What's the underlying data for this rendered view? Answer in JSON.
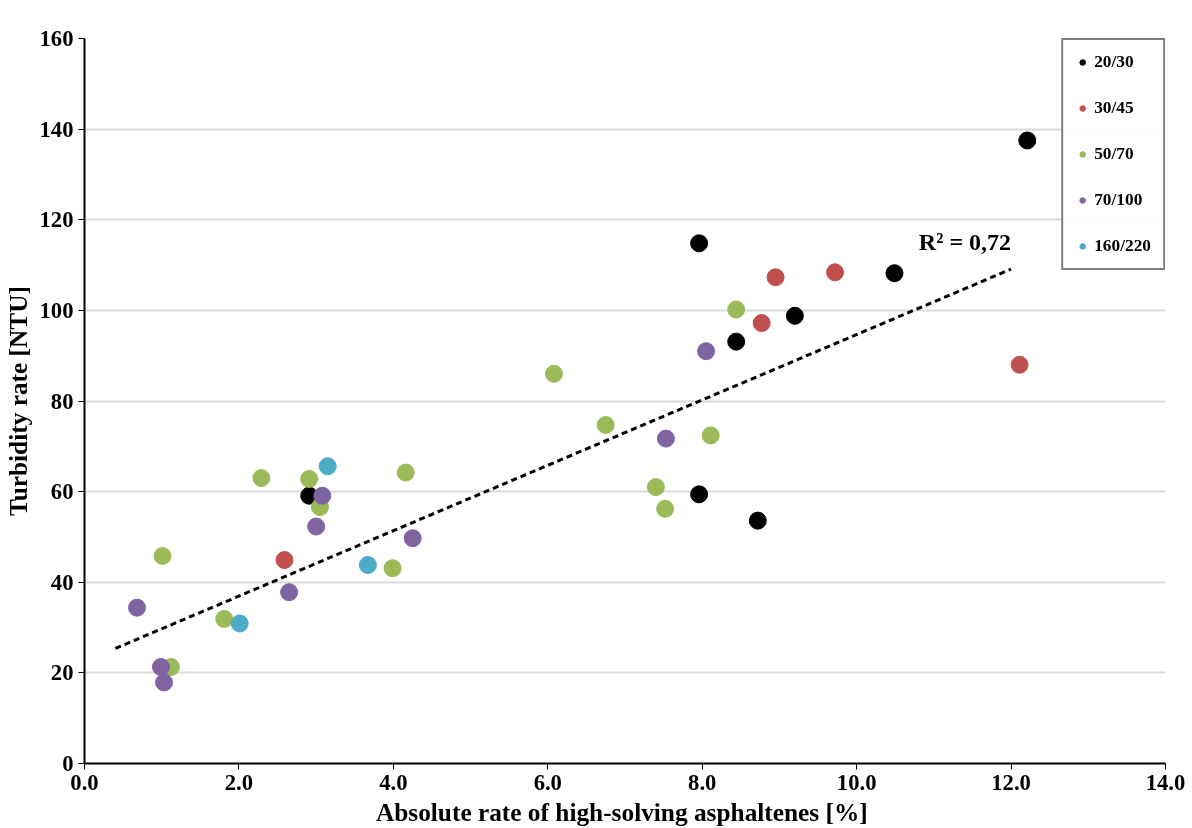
{
  "chart_data": {
    "type": "scatter",
    "xlabel": "Absolute rate of high-solving asphaltenes  [%]",
    "ylabel": "Turbidity rate [NTU]",
    "xlim": [
      0,
      14
    ],
    "ylim": [
      0,
      160
    ],
    "xticks": [
      {
        "value": 0,
        "label": "0.0"
      },
      {
        "value": 2,
        "label": "2.0"
      },
      {
        "value": 4,
        "label": "4.0"
      },
      {
        "value": 6,
        "label": "6.0"
      },
      {
        "value": 8,
        "label": "8.0"
      },
      {
        "value": 10,
        "label": "10.0"
      },
      {
        "value": 12,
        "label": "12.0"
      },
      {
        "value": 14,
        "label": "14.0"
      }
    ],
    "yticks": [
      0,
      20,
      40,
      60,
      80,
      100,
      120,
      140,
      160
    ],
    "grid": "y",
    "legend": "top right",
    "marker": "circle",
    "annotations": [
      {
        "text": "R² = 0,72",
        "x": 12.0,
        "y": 109.1
      }
    ],
    "series": [
      {
        "name": "20/30",
        "color": "#000000",
        "x": [
          2.91,
          7.96,
          8.44,
          9.2,
          10.49,
          12.21,
          7.96,
          8.72
        ],
        "values": [
          59.1,
          114.8,
          93.1,
          98.8,
          108.2,
          137.5,
          59.4,
          53.6
        ]
      },
      {
        "name": "30/45",
        "color": "#c0504d",
        "x": [
          2.59,
          8.77,
          8.95,
          9.72,
          12.11
        ],
        "values": [
          44.9,
          97.2,
          107.3,
          108.4,
          88.0
        ]
      },
      {
        "name": "50/70",
        "color": "#9bbb59",
        "x": [
          1.01,
          1.12,
          1.81,
          2.29,
          2.91,
          3.05,
          4.16,
          3.99,
          6.08,
          6.75,
          7.4,
          7.52,
          8.11,
          8.44
        ],
        "values": [
          45.8,
          21.3,
          31.9,
          63.0,
          62.8,
          56.6,
          64.2,
          43.1,
          86.0,
          74.7,
          61.0,
          56.2,
          72.4,
          100.2
        ]
      },
      {
        "name": "70/100",
        "color": "#8064a2",
        "x": [
          0.68,
          0.99,
          1.03,
          2.65,
          3.0,
          3.08,
          4.25,
          7.53,
          8.05
        ],
        "values": [
          34.4,
          21.3,
          17.9,
          37.8,
          52.3,
          59.1,
          49.7,
          71.7,
          91.0
        ]
      },
      {
        "name": "160/220",
        "color": "#4bacc6",
        "x": [
          2.01,
          3.15,
          3.67
        ],
        "values": [
          30.9,
          65.6,
          43.8
        ]
      },
      {
        "type": "line",
        "color": "#000000",
        "line_style": "dashed",
        "marker": "none",
        "x": [
          0.4,
          12.0
        ],
        "values": [
          25.4,
          109.1
        ]
      }
    ]
  }
}
